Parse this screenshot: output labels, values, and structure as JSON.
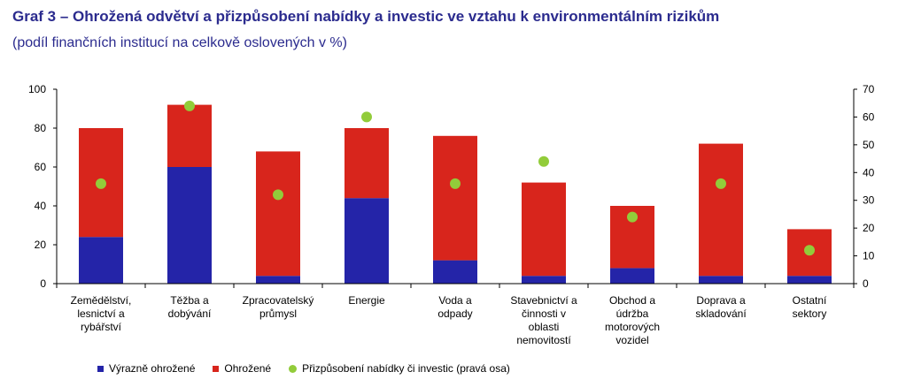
{
  "header": {
    "title": "Graf 3 – Ohrožená odvětví a přizpůsobení nabídky a investic ve vztahu k environmentálním rizikům",
    "subtitle": "(podíl finančních institucí na celkově oslovených v %)"
  },
  "colors": {
    "title": "#2b2b8e",
    "vyrazne": "#2424a8",
    "ohrozene": "#d8251c",
    "prizpusobeni": "#92cc3a"
  },
  "chart_data": {
    "type": "bar",
    "stacked": true,
    "title": "Graf 3 – Ohrožená odvětví a přizpůsobení nabídky a investic ve vztahu k environmentálním rizikům",
    "subtitle": "(podíl finančních institucí na celkově oslovených v %)",
    "categories": [
      [
        "Zemědělství,",
        "lesnictví a",
        "rybářství"
      ],
      [
        "Těžba a",
        "dobývání"
      ],
      [
        "Zpracovatelský",
        "průmysl"
      ],
      [
        "Energie"
      ],
      [
        "Voda a",
        "odpady"
      ],
      [
        "Stavebnictví a",
        "činnosti v",
        "oblasti",
        "nemovitostí"
      ],
      [
        "Obchod a",
        "údržba",
        "motorových",
        "vozidel"
      ],
      [
        "Doprava a",
        "skladování"
      ],
      [
        "Ostatní",
        "sektory"
      ]
    ],
    "series": [
      {
        "name": "Výrazně ohrožené",
        "kind": "bar",
        "axis": "left",
        "values": [
          24,
          60,
          4,
          44,
          12,
          4,
          8,
          4,
          4
        ]
      },
      {
        "name": "Ohrožené",
        "kind": "bar",
        "axis": "left",
        "values": [
          56,
          32,
          64,
          36,
          64,
          48,
          32,
          68,
          24
        ]
      },
      {
        "name": "Přizpůsobení nabídky či investic (pravá osa)",
        "kind": "dot",
        "axis": "right",
        "values": [
          36,
          64,
          32,
          60,
          36,
          44,
          24,
          36,
          12
        ]
      }
    ],
    "ylim_left": [
      0,
      100
    ],
    "yticks_left": [
      0,
      20,
      40,
      60,
      80,
      100
    ],
    "ylim_right": [
      0,
      70
    ],
    "yticks_right": [
      0,
      10,
      20,
      30,
      40,
      50,
      60,
      70
    ],
    "grid": false,
    "legend_position": "bottom"
  }
}
